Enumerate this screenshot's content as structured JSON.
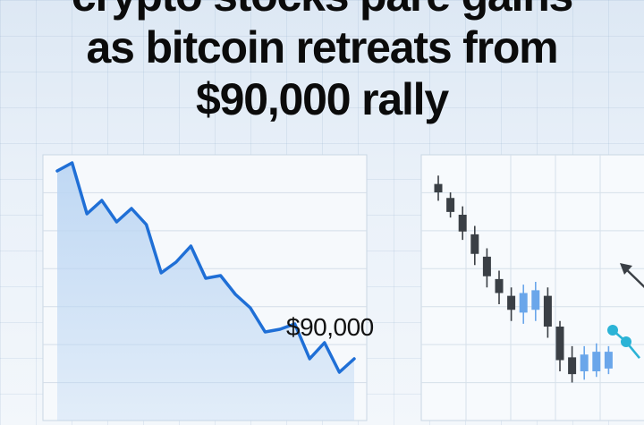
{
  "headline": {
    "line1": "crypto stocks pare gains",
    "line2": "as bitcoin retreats from",
    "line3": "$90,000 rally"
  },
  "chart_data": [
    {
      "type": "area",
      "price_label": "$90,000",
      "x": [
        0,
        1,
        2,
        3,
        4,
        5,
        6,
        7,
        8,
        9,
        10,
        11,
        12,
        13,
        14,
        15,
        16,
        17,
        18,
        19,
        20
      ],
      "values": [
        97,
        98.5,
        89,
        91.5,
        87.5,
        90,
        87,
        78,
        80,
        83,
        77,
        77.5,
        74,
        71.5,
        67,
        67.5,
        68.5,
        62,
        65,
        59.5,
        62
      ],
      "colors": {
        "line": "#1f6fd6",
        "fill": "#bcd6f3"
      }
    },
    {
      "type": "candlestick",
      "candles": [
        {
          "open": 95,
          "close": 92,
          "high": 98,
          "low": 89,
          "color": "dark"
        },
        {
          "open": 90,
          "close": 85,
          "high": 92,
          "low": 83,
          "color": "dark"
        },
        {
          "open": 84,
          "close": 78,
          "high": 87,
          "low": 75,
          "color": "dark"
        },
        {
          "open": 77,
          "close": 70,
          "high": 80,
          "low": 66,
          "color": "dark"
        },
        {
          "open": 69,
          "close": 62,
          "high": 72,
          "low": 58,
          "color": "dark"
        },
        {
          "open": 61,
          "close": 56,
          "high": 64,
          "low": 52,
          "color": "dark"
        },
        {
          "open": 55,
          "close": 50,
          "high": 58,
          "low": 46,
          "color": "dark"
        },
        {
          "open": 49,
          "close": 56,
          "high": 59,
          "low": 45,
          "color": "blue"
        },
        {
          "open": 50,
          "close": 57,
          "high": 60,
          "low": 46,
          "color": "blue"
        },
        {
          "open": 55,
          "close": 44,
          "high": 58,
          "low": 40,
          "color": "dark"
        },
        {
          "open": 44,
          "close": 32,
          "high": 46,
          "low": 28,
          "color": "dark"
        },
        {
          "open": 33,
          "close": 27,
          "high": 37,
          "low": 24,
          "color": "dark"
        },
        {
          "open": 28,
          "close": 34,
          "high": 37,
          "low": 25,
          "color": "blue"
        },
        {
          "open": 28,
          "close": 35,
          "high": 38,
          "low": 26,
          "color": "blue"
        },
        {
          "open": 29,
          "close": 35,
          "high": 37,
          "low": 27,
          "color": "blue"
        }
      ],
      "line_points": [
        {
          "x": 0,
          "y": 66
        },
        {
          "x": 1,
          "y": 61
        },
        {
          "x": 2,
          "y": 54
        }
      ],
      "colors": {
        "dark": "#3a3f45",
        "blue": "#6aa6ea",
        "accent": "#2bb3d6"
      }
    }
  ]
}
